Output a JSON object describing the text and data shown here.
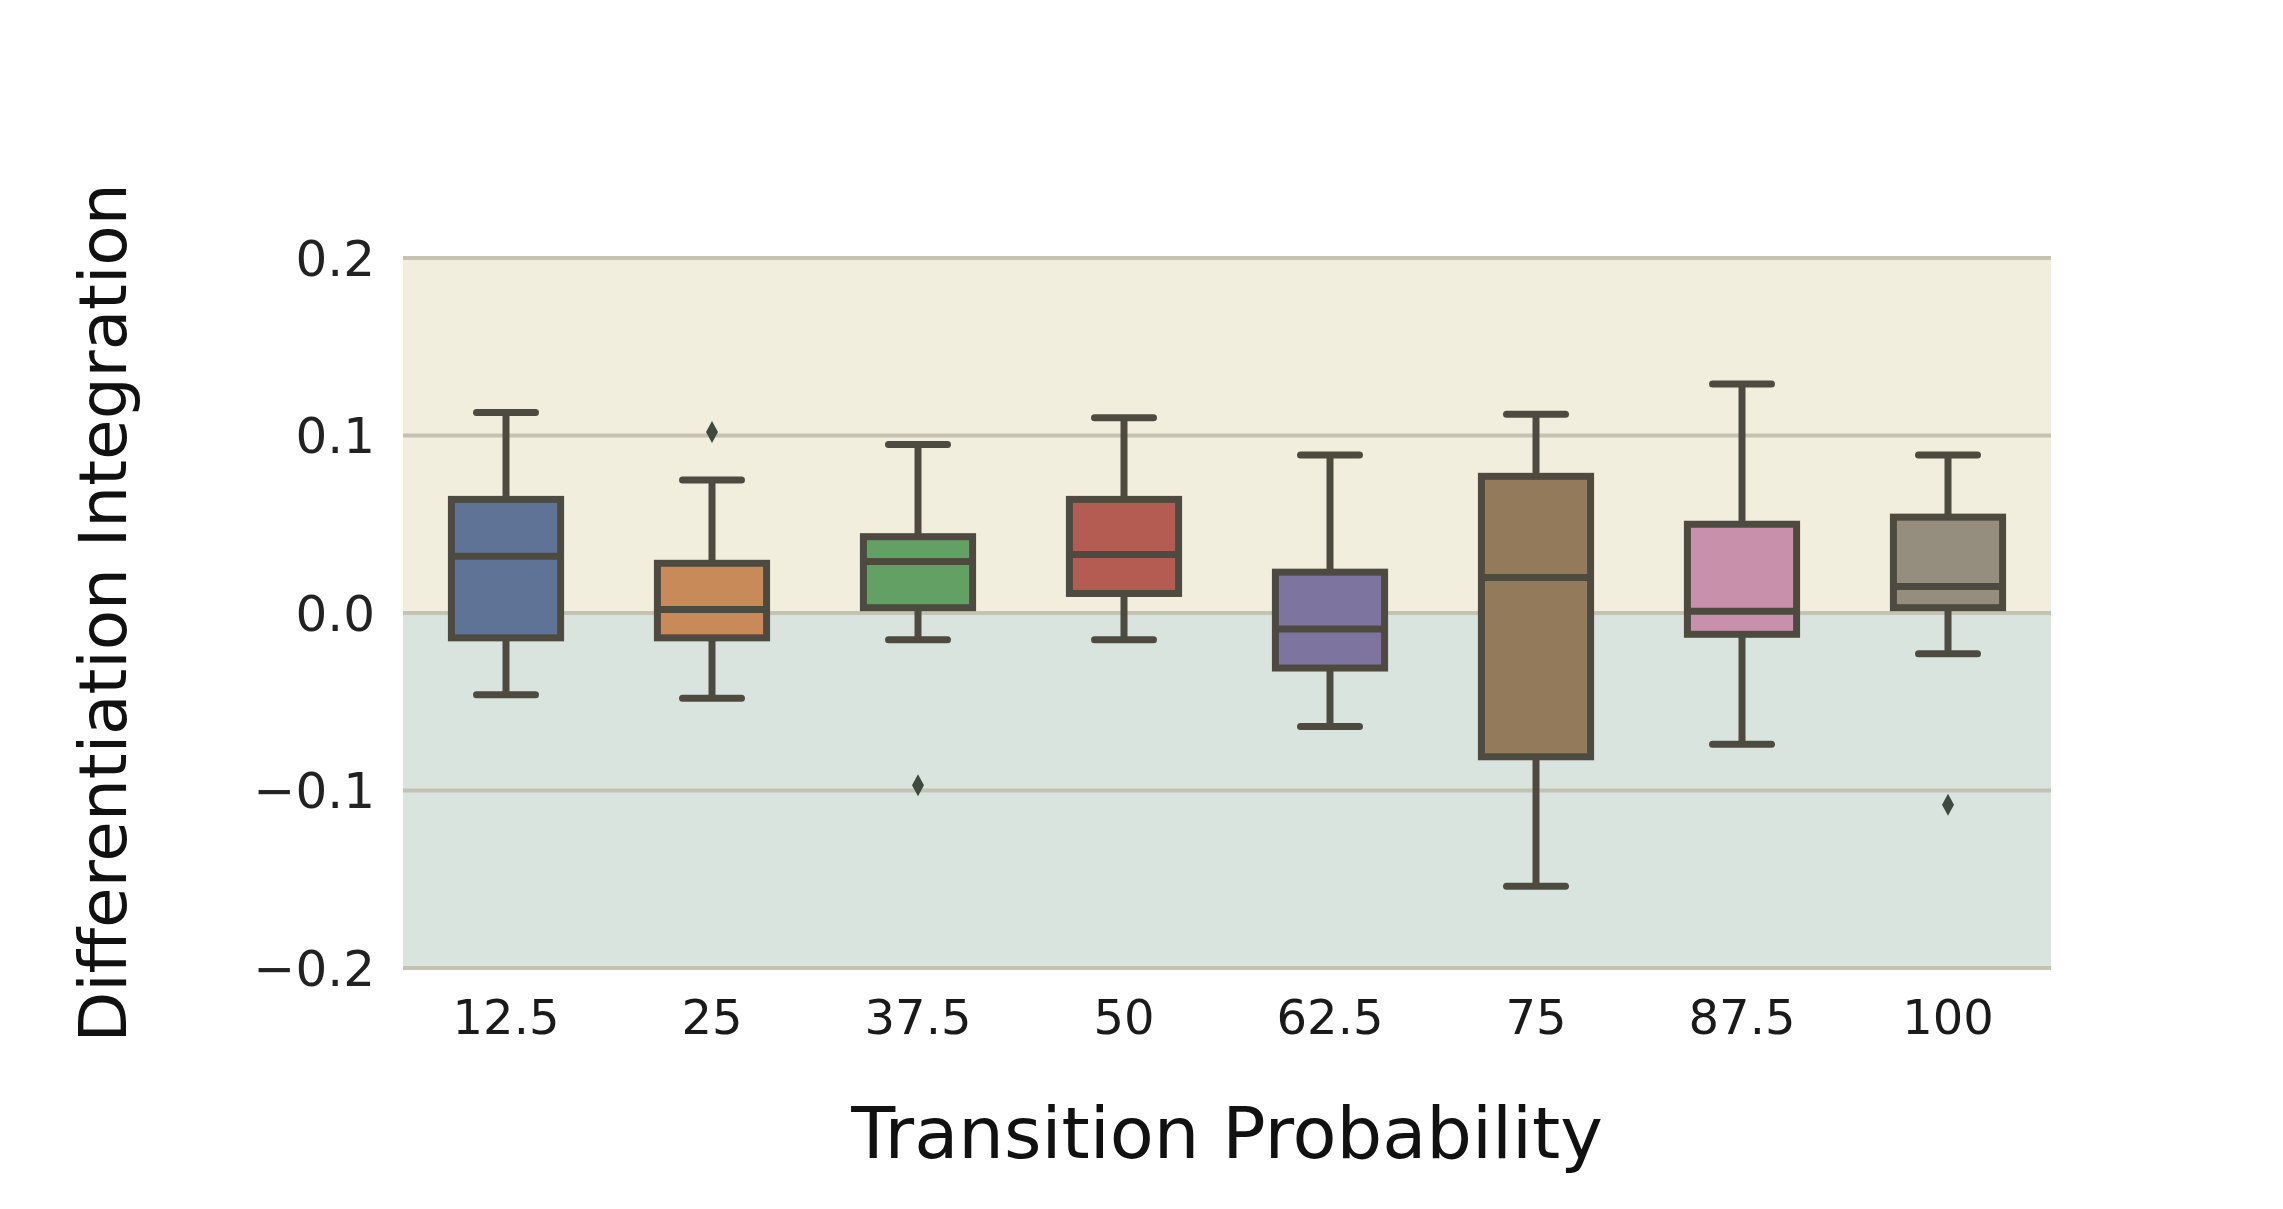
{
  "chart_data": {
    "type": "box",
    "xlabel": "Transition Probability",
    "ylabel": "Differentiation  Integration",
    "categories": [
      "12.5",
      "25",
      "37.5",
      "50",
      "62.5",
      "75",
      "87.5",
      "100"
    ],
    "colors": [
      "#5f7396",
      "#c98a5a",
      "#62a063",
      "#b45c52",
      "#7e74a0",
      "#927a5b",
      "#c990ab",
      "#958d7e"
    ],
    "boxes": [
      {
        "low": -0.046,
        "q1": -0.014,
        "median": 0.032,
        "q3": 0.064,
        "high": 0.113
      },
      {
        "low": -0.048,
        "q1": -0.014,
        "median": 0.002,
        "q3": 0.028,
        "high": 0.075,
        "outliers": [
          0.102
        ]
      },
      {
        "low": -0.015,
        "q1": 0.003,
        "median": 0.029,
        "q3": 0.043,
        "high": 0.095,
        "outliers": [
          -0.097
        ]
      },
      {
        "low": -0.015,
        "q1": 0.011,
        "median": 0.033,
        "q3": 0.064,
        "high": 0.11
      },
      {
        "low": -0.064,
        "q1": -0.031,
        "median": -0.009,
        "q3": 0.023,
        "high": 0.089
      },
      {
        "low": -0.154,
        "q1": -0.081,
        "median": 0.02,
        "q3": 0.077,
        "high": 0.112
      },
      {
        "low": -0.074,
        "q1": -0.012,
        "median": 0.001,
        "q3": 0.05,
        "high": 0.129
      },
      {
        "low": -0.023,
        "q1": 0.003,
        "median": 0.015,
        "q3": 0.054,
        "high": 0.089,
        "outliers": [
          -0.108
        ]
      }
    ],
    "ylim": [
      -0.2,
      0.2
    ],
    "yticks": [
      {
        "value": -0.2,
        "label": "−0.2"
      },
      {
        "value": -0.1,
        "label": "−0.1"
      },
      {
        "value": 0,
        "label": "0.0"
      },
      {
        "value": 0.1,
        "label": "0.1"
      },
      {
        "value": 0.2,
        "label": "0.2"
      }
    ],
    "grid": "y",
    "bands": [
      {
        "axis": "y",
        "from": 0,
        "to": 0.2,
        "color": "#f1eede"
      },
      {
        "axis": "y",
        "from": -0.2,
        "to": 0,
        "color": "#dae4de"
      }
    ]
  }
}
